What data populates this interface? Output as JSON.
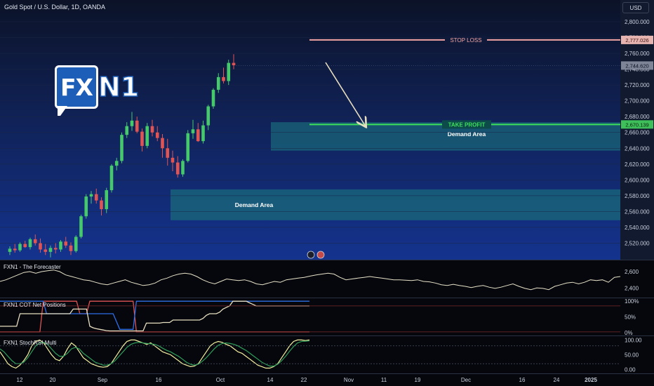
{
  "header": {
    "title": "Gold Spot / U.S. Dollar, 1D, OANDA",
    "currency": "USD"
  },
  "logo": {
    "part1": "FX",
    "part2": "N1"
  },
  "colors": {
    "background": "#0b1226",
    "bull": "#46c96b",
    "bear": "#e05454",
    "stop_loss": "#f2a4a4",
    "take_profit": "#3de05a",
    "demand_zone": "#1a6a7a",
    "arrow": "#e8dfc0"
  },
  "chart_data": [
    {
      "type": "candlestick",
      "pane": "price",
      "y_ticks": [
        "2,800.000",
        "2,780.000",
        "2,760.000",
        "2,740.000",
        "2,720.000",
        "2,700.000",
        "2,680.000",
        "2,660.000",
        "2,640.000",
        "2,620.000",
        "2,600.000",
        "2,580.000",
        "2,560.000",
        "2,540.000",
        "2,520.000"
      ],
      "ylim": [
        2508,
        2808
      ],
      "x_ticks": [
        "12",
        "20",
        "Sep",
        "16",
        "Oct",
        "14",
        "22",
        "Nov",
        "11",
        "19",
        "Dec",
        "16",
        "24",
        "2025"
      ],
      "candles": [
        {
          "o": 2509,
          "h": 2516,
          "l": 2505,
          "c": 2513
        },
        {
          "o": 2513,
          "h": 2519,
          "l": 2508,
          "c": 2511
        },
        {
          "o": 2511,
          "h": 2521,
          "l": 2509,
          "c": 2519
        },
        {
          "o": 2519,
          "h": 2523,
          "l": 2514,
          "c": 2515
        },
        {
          "o": 2515,
          "h": 2527,
          "l": 2512,
          "c": 2525
        },
        {
          "o": 2525,
          "h": 2531,
          "l": 2517,
          "c": 2520
        },
        {
          "o": 2520,
          "h": 2526,
          "l": 2508,
          "c": 2512
        },
        {
          "o": 2512,
          "h": 2519,
          "l": 2505,
          "c": 2509
        },
        {
          "o": 2509,
          "h": 2517,
          "l": 2502,
          "c": 2514
        },
        {
          "o": 2514,
          "h": 2520,
          "l": 2507,
          "c": 2512
        },
        {
          "o": 2512,
          "h": 2524,
          "l": 2509,
          "c": 2522
        },
        {
          "o": 2522,
          "h": 2528,
          "l": 2514,
          "c": 2517
        },
        {
          "o": 2517,
          "h": 2521,
          "l": 2505,
          "c": 2510
        },
        {
          "o": 2510,
          "h": 2530,
          "l": 2508,
          "c": 2528
        },
        {
          "o": 2528,
          "h": 2556,
          "l": 2526,
          "c": 2554
        },
        {
          "o": 2554,
          "h": 2582,
          "l": 2551,
          "c": 2579
        },
        {
          "o": 2579,
          "h": 2586,
          "l": 2570,
          "c": 2582
        },
        {
          "o": 2582,
          "h": 2589,
          "l": 2570,
          "c": 2574
        },
        {
          "o": 2574,
          "h": 2578,
          "l": 2555,
          "c": 2563
        },
        {
          "o": 2563,
          "h": 2590,
          "l": 2558,
          "c": 2587
        },
        {
          "o": 2587,
          "h": 2620,
          "l": 2584,
          "c": 2618
        },
        {
          "o": 2618,
          "h": 2628,
          "l": 2612,
          "c": 2624
        },
        {
          "o": 2624,
          "h": 2660,
          "l": 2621,
          "c": 2657
        },
        {
          "o": 2657,
          "h": 2673,
          "l": 2653,
          "c": 2668
        },
        {
          "o": 2668,
          "h": 2686,
          "l": 2662,
          "c": 2675
        },
        {
          "o": 2675,
          "h": 2680,
          "l": 2659,
          "c": 2661
        },
        {
          "o": 2661,
          "h": 2665,
          "l": 2636,
          "c": 2643
        },
        {
          "o": 2643,
          "h": 2672,
          "l": 2640,
          "c": 2668
        },
        {
          "o": 2668,
          "h": 2676,
          "l": 2655,
          "c": 2660
        },
        {
          "o": 2660,
          "h": 2668,
          "l": 2649,
          "c": 2653
        },
        {
          "o": 2653,
          "h": 2658,
          "l": 2628,
          "c": 2640
        },
        {
          "o": 2640,
          "h": 2652,
          "l": 2618,
          "c": 2628
        },
        {
          "o": 2628,
          "h": 2637,
          "l": 2611,
          "c": 2622
        },
        {
          "o": 2622,
          "h": 2630,
          "l": 2603,
          "c": 2607
        },
        {
          "o": 2607,
          "h": 2626,
          "l": 2604,
          "c": 2624
        },
        {
          "o": 2624,
          "h": 2663,
          "l": 2622,
          "c": 2659
        },
        {
          "o": 2659,
          "h": 2676,
          "l": 2652,
          "c": 2664
        },
        {
          "o": 2664,
          "h": 2672,
          "l": 2648,
          "c": 2649
        },
        {
          "o": 2649,
          "h": 2675,
          "l": 2646,
          "c": 2669
        },
        {
          "o": 2669,
          "h": 2695,
          "l": 2663,
          "c": 2693
        },
        {
          "o": 2693,
          "h": 2716,
          "l": 2690,
          "c": 2714
        },
        {
          "o": 2714,
          "h": 2735,
          "l": 2710,
          "c": 2730
        },
        {
          "o": 2730,
          "h": 2742,
          "l": 2722,
          "c": 2725
        },
        {
          "o": 2725,
          "h": 2752,
          "l": 2720,
          "c": 2748
        },
        {
          "o": 2748,
          "h": 2759,
          "l": 2740,
          "c": 2745
        }
      ],
      "stop_loss": {
        "label": "STOP LOSS",
        "value": 2777.026,
        "value_label": "2,777.026"
      },
      "take_profit": {
        "label": "TAKE PROFIT",
        "value": 2670.139,
        "value_label": "2,670.139"
      },
      "last_price": {
        "value": 2744.62,
        "value_label": "2,744.620"
      },
      "zones": [
        {
          "label": "Demand Area",
          "top": 2588,
          "bottom": 2549
        },
        {
          "label": "Demand Area",
          "top": 2673,
          "bottom": 2637
        }
      ]
    },
    {
      "type": "line",
      "pane": "FXN1 - The Forecaster",
      "title": "FXN1 - The Forecaster",
      "y_ticks": [
        "2,600",
        "2,400"
      ],
      "ylim": [
        2300,
        2720
      ],
      "values": [
        2480,
        2500,
        2530,
        2560,
        2590,
        2600,
        2580,
        2600,
        2610,
        2620,
        2600,
        2560,
        2540,
        2520,
        2500,
        2490,
        2470,
        2450,
        2440,
        2460,
        2480,
        2500,
        2470,
        2450,
        2430,
        2440,
        2460,
        2500,
        2520,
        2550,
        2570,
        2580,
        2570,
        2540,
        2500,
        2470,
        2450,
        2480,
        2510,
        2500,
        2490,
        2500,
        2480,
        2450,
        2440,
        2460,
        2480,
        2470,
        2500,
        2510,
        2520,
        2530,
        2545,
        2560,
        2570,
        2580,
        2570,
        2530,
        2500,
        2510,
        2520,
        2530,
        2540,
        2530,
        2520,
        2510,
        2500,
        2500,
        2495,
        2490,
        2500,
        2480,
        2475,
        2460,
        2440,
        2430,
        2445,
        2430,
        2420,
        2405,
        2420,
        2430,
        2410,
        2395,
        2410,
        2430,
        2450,
        2420,
        2395,
        2380,
        2400,
        2395,
        2380,
        2420,
        2440,
        2460,
        2470,
        2450,
        2470,
        2500,
        2490,
        2500,
        2470,
        2530,
        2540
      ]
    },
    {
      "type": "line",
      "pane": "FXN1 COT Net Positions",
      "title": "FXN1 COT Net Positions",
      "y_ticks": [
        "100%",
        "50%",
        "0%"
      ],
      "ylim": [
        -5,
        105
      ],
      "series": [
        {
          "color": "#e05454",
          "values": [
            2,
            2,
            2,
            2,
            2,
            2,
            2,
            2,
            2,
            2,
            2,
            2,
            2,
            100,
            100,
            100,
            100,
            100,
            100,
            100,
            100,
            100,
            100,
            100,
            60,
            60,
            60,
            100,
            100,
            100,
            100,
            100,
            100,
            100,
            100,
            100,
            100,
            100,
            100,
            100,
            100,
            2,
            2,
            2,
            2,
            2,
            2,
            2,
            2,
            2,
            2,
            2,
            2,
            2,
            2,
            2,
            2,
            2,
            2,
            2,
            2,
            2,
            2,
            2,
            2,
            2,
            2,
            2,
            2,
            2,
            2,
            2,
            2,
            2,
            2,
            2,
            2,
            2,
            2,
            2,
            2,
            2,
            2,
            2,
            2,
            2,
            2,
            2,
            2,
            2,
            2,
            2,
            2,
            2
          ]
        },
        {
          "color": "#2f6fe8",
          "values": [
            100,
            100,
            100,
            100,
            100,
            100,
            100,
            100,
            100,
            100,
            100,
            100,
            100,
            100,
            60,
            60,
            60,
            60,
            60,
            60,
            60,
            60,
            60,
            60,
            60,
            60,
            60,
            60,
            60,
            60,
            60,
            60,
            60,
            60,
            60,
            35,
            10,
            10,
            10,
            10,
            10,
            100,
            100,
            100,
            100,
            100,
            100,
            100,
            100,
            100,
            100,
            100,
            100,
            100,
            100,
            100,
            100,
            100,
            100,
            100,
            100,
            100,
            100,
            100,
            100,
            100,
            100,
            100,
            100,
            100,
            100,
            100,
            100,
            100,
            100,
            100,
            100,
            100,
            100,
            100,
            100,
            100,
            100,
            100,
            100,
            100,
            100,
            100,
            100,
            100,
            100,
            100,
            100,
            100
          ]
        },
        {
          "color": "#e8dfc0",
          "values": [
            20,
            20,
            20,
            20,
            20,
            20,
            60,
            60,
            60,
            60,
            60,
            60,
            60,
            60,
            60,
            60,
            60,
            60,
            60,
            60,
            60,
            60,
            75,
            75,
            75,
            75,
            75,
            20,
            15,
            12,
            10,
            8,
            6,
            5,
            5,
            5,
            5,
            5,
            5,
            5,
            5,
            5,
            5,
            5,
            30,
            30,
            30,
            30,
            30,
            32,
            32,
            32,
            40,
            40,
            40,
            40,
            40,
            40,
            40,
            40,
            40,
            45,
            55,
            60,
            60,
            60,
            65,
            75,
            80,
            85,
            100,
            100,
            100,
            100,
            100,
            95,
            90,
            85,
            85,
            85,
            85,
            85,
            85,
            85,
            85,
            85,
            85,
            85,
            85,
            85,
            85,
            85,
            85,
            85
          ]
        }
      ]
    },
    {
      "type": "line",
      "pane": "FXN1 StochRSI Multi",
      "title": "FXN1 StochRSI Multi",
      "y_ticks": [
        "100.00",
        "50.00",
        "0.00"
      ],
      "ylim": [
        -8,
        108
      ],
      "series": [
        {
          "color": "#f4f0a0",
          "values": [
            60,
            40,
            20,
            10,
            5,
            15,
            30,
            50,
            80,
            95,
            100,
            90,
            70,
            50,
            35,
            30,
            45,
            70,
            90,
            80,
            60,
            40,
            30,
            20,
            15,
            10,
            8,
            10,
            20,
            40,
            60,
            80,
            95,
            100,
            100,
            95,
            90,
            85,
            90,
            80,
            70,
            60,
            55,
            50,
            40,
            30,
            20,
            15,
            10,
            12,
            20,
            40,
            60,
            80,
            90,
            95,
            92,
            85,
            80,
            70,
            60,
            55,
            45,
            35,
            25,
            15,
            10,
            5,
            5,
            10,
            20,
            40,
            60,
            80,
            95,
            100,
            100,
            98,
            100
          ]
        },
        {
          "color": "#2f9e5a",
          "values": [
            70,
            60,
            45,
            30,
            20,
            20,
            25,
            40,
            60,
            80,
            90,
            92,
            85,
            70,
            55,
            45,
            45,
            55,
            70,
            75,
            70,
            55,
            45,
            35,
            25,
            20,
            15,
            15,
            20,
            30,
            45,
            60,
            75,
            85,
            90,
            92,
            90,
            88,
            87,
            85,
            80,
            72,
            65,
            60,
            52,
            45,
            35,
            25,
            18,
            15,
            18,
            28,
            40,
            55,
            70,
            82,
            88,
            90,
            88,
            85,
            80,
            72,
            65,
            55,
            45,
            35,
            25,
            18,
            12,
            12,
            18,
            30,
            45,
            62,
            78,
            90,
            95,
            96,
            97
          ]
        }
      ]
    }
  ]
}
